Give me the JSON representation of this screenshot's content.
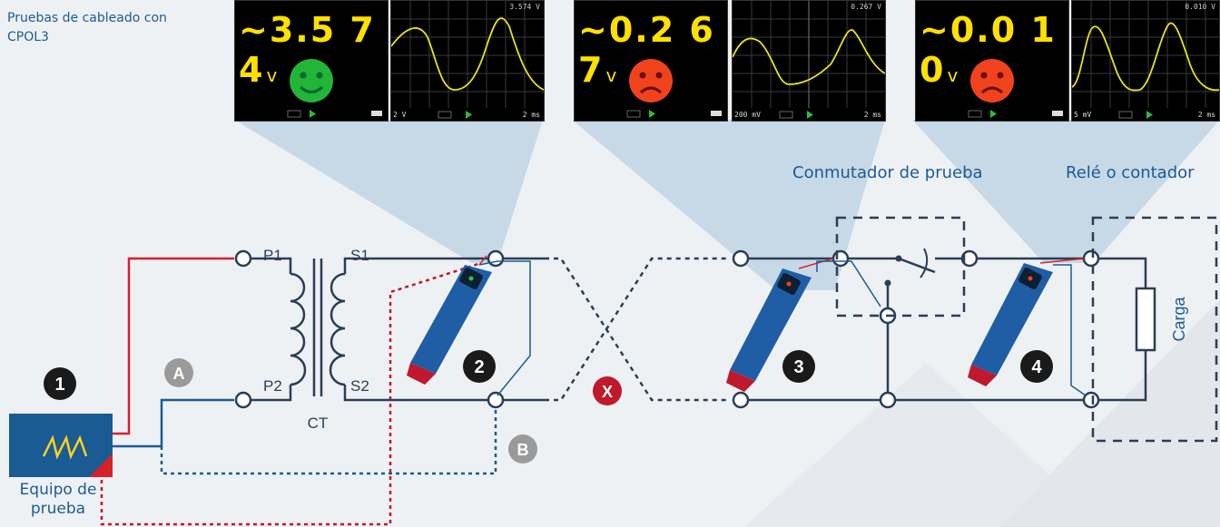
{
  "title": "Pruebas de cableado con CPOL3",
  "labels": {
    "test_switch": "Conmutador de prueba",
    "relay": "Relé o contador",
    "load": "Carga",
    "equipment": "Equipo de prueba",
    "ct": "CT",
    "p1": "P1",
    "p2": "P2",
    "s1": "S1",
    "s2": "S2"
  },
  "markers": {
    "m1": "1",
    "m2": "2",
    "m3": "3",
    "m4": "4",
    "a": "A",
    "b": "B",
    "x": "X"
  },
  "screens": [
    {
      "value": "~3.5 7 4",
      "unit": "v",
      "face": "happy",
      "face_color": "#22b537",
      "scope_reading": "3.574 V",
      "scale_left": "2 V",
      "scale_right": "2 ms"
    },
    {
      "value": "~0.2 6 7",
      "unit": "v",
      "face": "sad",
      "face_color": "#f0431d",
      "scope_reading": "0.267 V",
      "scale_left": "200 mV",
      "scale_right": "2 ms"
    },
    {
      "value": "~0.0 1 0",
      "unit": "v",
      "face": "sad",
      "face_color": "#f0431d",
      "scope_reading": "0.010 V",
      "scale_left": "5 mV",
      "scale_right": "2 ms"
    }
  ],
  "colors": {
    "red": "#d6212b",
    "blue": "#1a5b94",
    "navy": "#2a3e55",
    "marker_gray": "#9a9a9a",
    "marker_dark": "#1a1a1a",
    "marker_red": "#c0182c"
  },
  "icons": {
    "equipment": "sawtooth-wave-icon",
    "probe": "cpol3-probe-icon"
  }
}
